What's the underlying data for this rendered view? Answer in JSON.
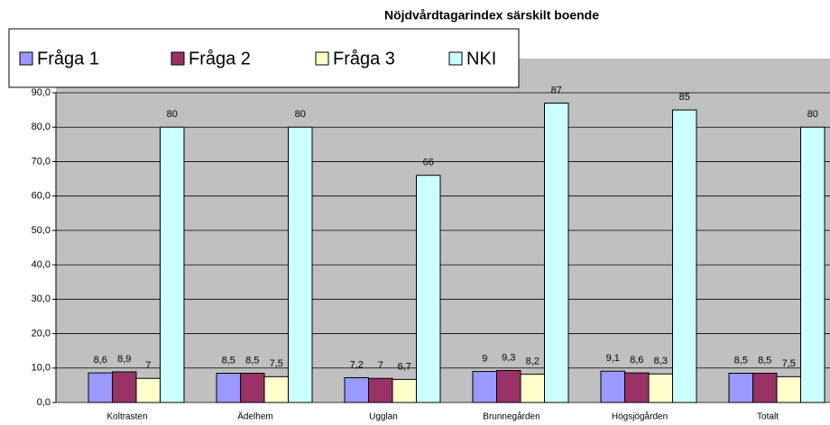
{
  "chart_data": {
    "type": "bar",
    "title": "Nöjdvårdtagarindex särskilt boende",
    "categories": [
      "Koltrasten",
      "Ädelhem",
      "Ugglan",
      "Brunnegården",
      "Högsjögården",
      "Totalt"
    ],
    "series": [
      {
        "name": "Fråga 1",
        "color": "#9999ff",
        "values": [
          8.6,
          8.5,
          7.2,
          9,
          9.1,
          8.5
        ],
        "value_labels": [
          "8,6",
          "8,5",
          "7,2",
          "9",
          "9,1",
          "8,5"
        ]
      },
      {
        "name": "Fråga 2",
        "color": "#993366",
        "values": [
          8.9,
          8.5,
          7,
          9.3,
          8.6,
          8.5
        ],
        "value_labels": [
          "8,9",
          "8,5",
          "7",
          "9,3",
          "8,6",
          "8,5"
        ]
      },
      {
        "name": "Fråga 3",
        "color": "#ffffcc",
        "values": [
          7,
          7.5,
          6.7,
          8.2,
          8.3,
          7.5
        ],
        "value_labels": [
          "7",
          "7,5",
          "6,7",
          "8,2",
          "8,3",
          "7,5"
        ]
      },
      {
        "name": "NKI",
        "color": "#ccffff",
        "values": [
          80,
          80,
          66,
          87,
          85,
          80
        ]
      }
    ],
    "ylim": [
      0,
      90
    ],
    "yticks": [
      {
        "value": 0,
        "label": "0,0"
      },
      {
        "value": 10,
        "label": "10,0"
      },
      {
        "value": 20,
        "label": "20,0"
      },
      {
        "value": 30,
        "label": "30,0"
      },
      {
        "value": 40,
        "label": "40,0"
      },
      {
        "value": 50,
        "label": "50,0"
      },
      {
        "value": 60,
        "label": "60,0"
      },
      {
        "value": 70,
        "label": "70,0"
      },
      {
        "value": 80,
        "label": "80,0"
      },
      {
        "value": 90,
        "label": "90,0"
      }
    ],
    "grid": true,
    "legend_position": "top-left"
  }
}
